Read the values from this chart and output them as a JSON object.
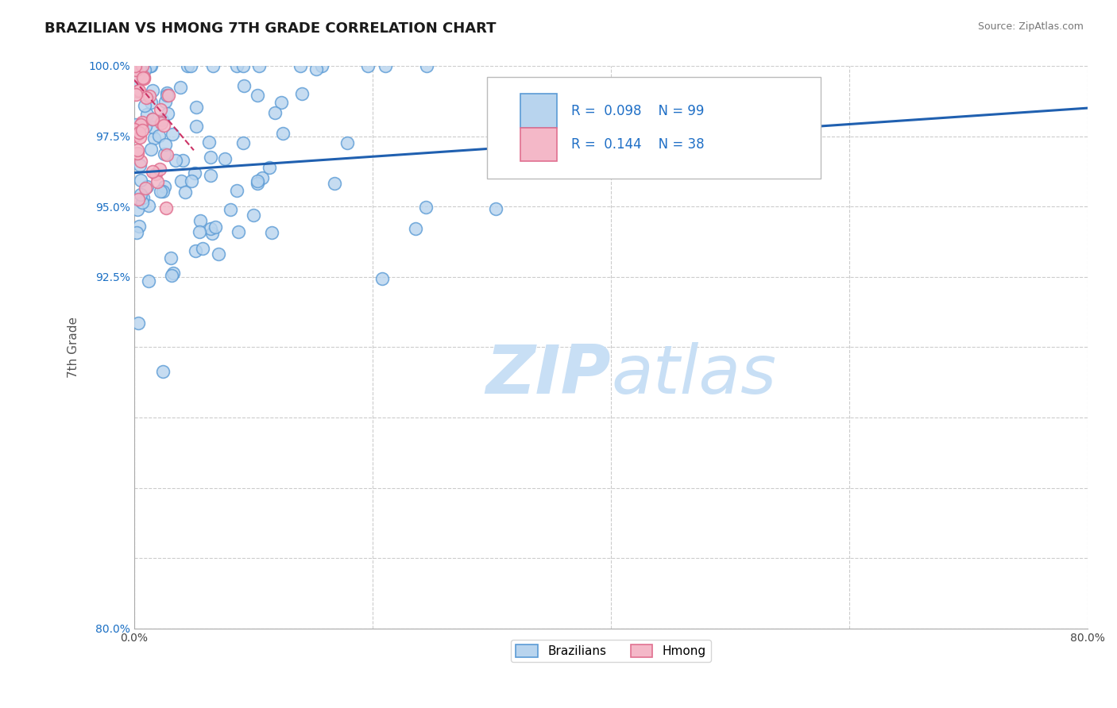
{
  "title": "BRAZILIAN VS HMONG 7TH GRADE CORRELATION CHART",
  "source_text": "Source: ZipAtlas.com",
  "ylabel": "7th Grade",
  "x_min": 0.0,
  "x_max": 80.0,
  "y_min": 80.0,
  "y_max": 100.0,
  "r_brazilian": 0.098,
  "n_brazilian": 99,
  "r_hmong": 0.144,
  "n_hmong": 38,
  "brazilian_color": "#b8d4ee",
  "brazilian_edge": "#5b9bd5",
  "hmong_color": "#f4b8c8",
  "hmong_edge": "#e07090",
  "trend_line_color": "#2060b0",
  "hmong_trend_color": "#cc3366",
  "watermark_zip": "ZIP",
  "watermark_atlas": "atlas",
  "watermark_color_zip": "#c8dff5",
  "watermark_color_atlas": "#c8dff5",
  "background_color": "#ffffff",
  "grid_color": "#cccccc",
  "title_color": "#1a1a1a",
  "title_fontsize": 13,
  "axis_label_color": "#555555",
  "legend_r_color": "#1f6fc6",
  "seed": 42
}
